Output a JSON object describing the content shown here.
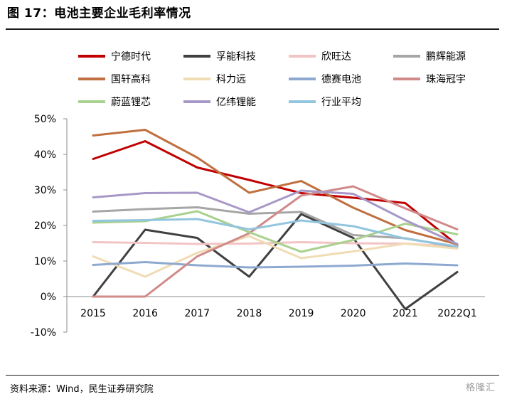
{
  "title": "图 17：电池主要企业毛利率情况",
  "source": "资料来源：Wind，民生证券研究院",
  "watermark": "格隆汇",
  "chart_data": {
    "type": "line",
    "title": "",
    "xlabel": "",
    "ylabel": "",
    "categories": [
      "2015",
      "2016",
      "2017",
      "2018",
      "2019",
      "2020",
      "2021",
      "2022Q1"
    ],
    "ylim": [
      -10,
      50
    ],
    "yticks": [
      -10,
      0,
      10,
      20,
      30,
      40,
      50
    ],
    "ytick_labels": [
      "-10%",
      "0%",
      "10%",
      "20%",
      "30%",
      "40%",
      "50%"
    ],
    "grid": false,
    "legend_position": "top",
    "series": [
      {
        "name": "宁德时代",
        "color": "#c00000",
        "values": [
          38.7,
          43.7,
          36.3,
          32.8,
          29.1,
          27.8,
          26.3,
          14.5
        ]
      },
      {
        "name": "孚能科技",
        "color": "#404040",
        "values": [
          0,
          18.8,
          16.5,
          5.6,
          23.2,
          16.5,
          -3.5,
          6.9
        ]
      },
      {
        "name": "欣旺达",
        "color": "#f2c4c4",
        "values": [
          15.3,
          15.1,
          14.8,
          14.9,
          15.3,
          15.0,
          14.9,
          14.0
        ]
      },
      {
        "name": "鹏辉能源",
        "color": "#a6a6a6",
        "values": [
          23.9,
          24.6,
          25.1,
          23.3,
          23.8,
          17.3,
          16.4,
          13.9
        ]
      },
      {
        "name": "国轩高科",
        "color": "#c07040",
        "values": [
          45.3,
          46.9,
          39.1,
          29.2,
          32.5,
          25.0,
          18.7,
          14.7
        ]
      },
      {
        "name": "科力远",
        "color": "#f0dcb4",
        "values": [
          11.3,
          5.6,
          12.3,
          17.0,
          10.8,
          12.7,
          14.9,
          13.5
        ]
      },
      {
        "name": "德赛电池",
        "color": "#8ea9d0",
        "values": [
          8.9,
          9.7,
          8.8,
          8.2,
          8.4,
          8.7,
          9.3,
          8.8
        ]
      },
      {
        "name": "珠海冠宇",
        "color": "#d08a8a",
        "values": [
          0,
          0,
          11.3,
          17.8,
          28.4,
          31.0,
          24.8,
          18.9
        ]
      },
      {
        "name": "蔚蓝锂芯",
        "color": "#a9d18e",
        "values": [
          20.8,
          21.2,
          24.0,
          18.1,
          12.6,
          15.9,
          20.5,
          17.5
        ]
      },
      {
        "name": "亿纬锂能",
        "color": "#a898c8",
        "values": [
          27.9,
          29.1,
          29.2,
          23.7,
          29.8,
          28.9,
          21.5,
          14.8
        ]
      },
      {
        "name": "行业平均",
        "color": "#92c5de",
        "values": [
          21.3,
          21.5,
          21.8,
          18.9,
          21.4,
          19.8,
          16.3,
          14.1
        ]
      }
    ]
  }
}
